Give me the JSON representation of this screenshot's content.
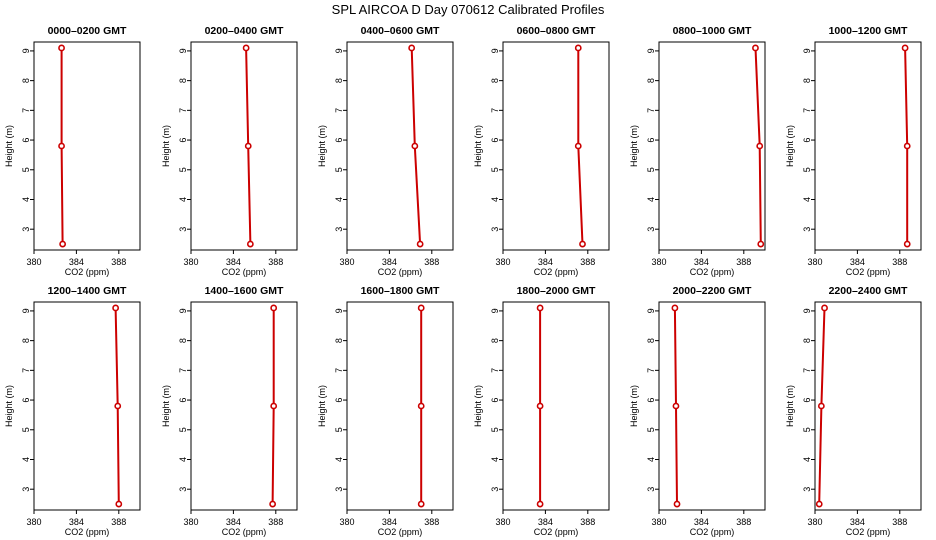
{
  "figure": {
    "title": "SPL AIRCOA D  Day 070612  Calibrated Profiles"
  },
  "axes": {
    "xlabel": "CO2 (ppm)",
    "ylabel": "Height (m)",
    "x_ticks": [
      380,
      384,
      388
    ],
    "y_ticks": [
      3,
      4,
      5,
      6,
      7,
      8,
      9
    ],
    "xlim": [
      380,
      390
    ],
    "ylim": [
      2.3,
      9.3
    ],
    "grid": false
  },
  "style": {
    "series_color": "#cc0000",
    "axis_color": "#000000"
  },
  "chart_data": [
    {
      "type": "line",
      "title": "0000–0200 GMT",
      "x": [
        382.7,
        382.6,
        382.6
      ],
      "y": [
        2.5,
        5.8,
        9.1
      ]
    },
    {
      "type": "line",
      "title": "0200–0400 GMT",
      "x": [
        385.6,
        385.4,
        385.2
      ],
      "y": [
        2.5,
        5.8,
        9.1
      ]
    },
    {
      "type": "line",
      "title": "0400–0600 GMT",
      "x": [
        386.9,
        386.4,
        386.1
      ],
      "y": [
        2.5,
        5.8,
        9.1
      ]
    },
    {
      "type": "line",
      "title": "0600–0800 GMT",
      "x": [
        387.5,
        387.1,
        387.1
      ],
      "y": [
        2.5,
        5.8,
        9.1
      ]
    },
    {
      "type": "line",
      "title": "0800–1000 GMT",
      "x": [
        389.6,
        389.5,
        389.1
      ],
      "y": [
        2.5,
        5.8,
        9.1
      ]
    },
    {
      "type": "line",
      "title": "1000–1200 GMT",
      "x": [
        388.7,
        388.7,
        388.5
      ],
      "y": [
        2.5,
        5.8,
        9.1
      ]
    },
    {
      "type": "line",
      "title": "1200–1400 GMT",
      "x": [
        388.0,
        387.9,
        387.7
      ],
      "y": [
        2.5,
        5.8,
        9.1
      ]
    },
    {
      "type": "line",
      "title": "1400–1600 GMT",
      "x": [
        387.7,
        387.8,
        387.8
      ],
      "y": [
        2.5,
        5.8,
        9.1
      ]
    },
    {
      "type": "line",
      "title": "1600–1800 GMT",
      "x": [
        387.0,
        387.0,
        387.0
      ],
      "y": [
        2.5,
        5.8,
        9.1
      ]
    },
    {
      "type": "line",
      "title": "1800–2000 GMT",
      "x": [
        383.5,
        383.5,
        383.5
      ],
      "y": [
        2.5,
        5.8,
        9.1
      ]
    },
    {
      "type": "line",
      "title": "2000–2200 GMT",
      "x": [
        381.7,
        381.6,
        381.5
      ],
      "y": [
        2.5,
        5.8,
        9.1
      ]
    },
    {
      "type": "line",
      "title": "2200–2400 GMT",
      "x": [
        380.4,
        380.6,
        380.9
      ],
      "y": [
        2.5,
        5.8,
        9.1
      ]
    }
  ]
}
